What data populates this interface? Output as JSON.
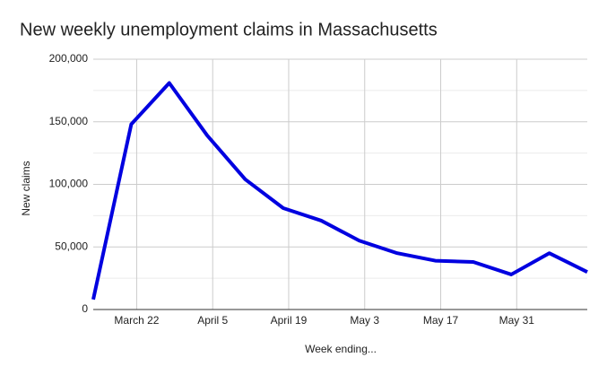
{
  "chart_data": {
    "type": "line",
    "title": "New weekly unemployment claims in Massachusetts",
    "x_label": "Week ending...",
    "y_label": "New claims",
    "x": [
      "March 14",
      "March 21",
      "March 28",
      "April 4",
      "April 11",
      "April 18",
      "April 25",
      "May 2",
      "May 9",
      "May 16",
      "May 23",
      "May 30",
      "June 6",
      "June 13"
    ],
    "series": [
      {
        "name": "New claims",
        "color": "#0000e0",
        "values": [
          8000,
          148000,
          181000,
          139000,
          104000,
          81000,
          71000,
          55000,
          45000,
          39000,
          38000,
          28000,
          45000,
          30000
        ]
      }
    ],
    "xlim": [
      "March 14",
      "June 13"
    ],
    "xticks": [
      "March 22",
      "April 5",
      "April 19",
      "May 3",
      "May 17",
      "May 31"
    ],
    "ylim": [
      0,
      200000
    ],
    "yticks": [
      0,
      {
        "value": 50000,
        "label": "50,000"
      },
      {
        "value": 100000,
        "label": "100,000"
      },
      {
        "value": 150000,
        "label": "150,000"
      },
      {
        "value": 200000,
        "label": "200,000"
      }
    ],
    "grid": true
  }
}
